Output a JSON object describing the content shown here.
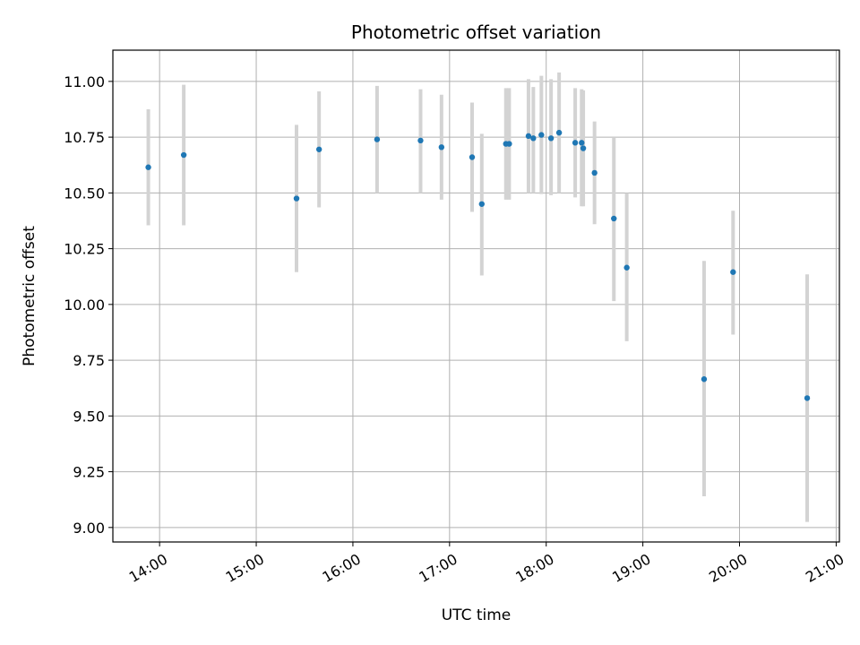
{
  "chart_data": {
    "type": "scatter",
    "title": "Photometric offset variation",
    "xlabel": "UTC time",
    "ylabel": "Photometric offset",
    "x_axis": "time",
    "xlim": [
      "13:31",
      "21:02"
    ],
    "ylim": [
      8.935,
      11.14
    ],
    "x_ticks": [
      "14:00",
      "15:00",
      "16:00",
      "17:00",
      "18:00",
      "19:00",
      "20:00",
      "21:00"
    ],
    "y_ticks": [
      "9.00",
      "9.25",
      "9.50",
      "9.75",
      "10.00",
      "10.25",
      "10.50",
      "10.75",
      "11.00"
    ],
    "grid": true,
    "colors": {
      "points": "#1f77b4",
      "errorbars": "#d3d3d3",
      "grid": "#b0b0b0"
    },
    "points": [
      {
        "t": "13:53",
        "y": 10.615,
        "lo": 10.355,
        "hi": 10.875
      },
      {
        "t": "14:15",
        "y": 10.67,
        "lo": 10.355,
        "hi": 10.985
      },
      {
        "t": "15:25",
        "y": 10.475,
        "lo": 10.145,
        "hi": 10.805
      },
      {
        "t": "15:39",
        "y": 10.695,
        "lo": 10.435,
        "hi": 10.955
      },
      {
        "t": "16:15",
        "y": 10.74,
        "lo": 10.5,
        "hi": 10.98
      },
      {
        "t": "16:42",
        "y": 10.735,
        "lo": 10.5,
        "hi": 10.965
      },
      {
        "t": "16:55",
        "y": 10.705,
        "lo": 10.47,
        "hi": 10.94
      },
      {
        "t": "17:14",
        "y": 10.66,
        "lo": 10.415,
        "hi": 10.905
      },
      {
        "t": "17:20",
        "y": 10.45,
        "lo": 10.13,
        "hi": 10.765
      },
      {
        "t": "17:35",
        "y": 10.72,
        "lo": 10.47,
        "hi": 10.97
      },
      {
        "t": "17:37",
        "y": 10.72,
        "lo": 10.47,
        "hi": 10.97
      },
      {
        "t": "17:49",
        "y": 10.755,
        "lo": 10.5,
        "hi": 11.01
      },
      {
        "t": "17:52",
        "y": 10.745,
        "lo": 10.5,
        "hi": 10.975
      },
      {
        "t": "17:57",
        "y": 10.76,
        "lo": 10.495,
        "hi": 11.025
      },
      {
        "t": "18:03",
        "y": 10.745,
        "lo": 10.49,
        "hi": 11.01
      },
      {
        "t": "18:08",
        "y": 10.77,
        "lo": 10.5,
        "hi": 11.04
      },
      {
        "t": "18:18",
        "y": 10.725,
        "lo": 10.48,
        "hi": 10.97
      },
      {
        "t": "18:22",
        "y": 10.725,
        "lo": 10.44,
        "hi": 10.965
      },
      {
        "t": "18:23",
        "y": 10.7,
        "lo": 10.44,
        "hi": 10.96
      },
      {
        "t": "18:30",
        "y": 10.59,
        "lo": 10.36,
        "hi": 10.82
      },
      {
        "t": "18:42",
        "y": 10.385,
        "lo": 10.015,
        "hi": 10.75
      },
      {
        "t": "18:50",
        "y": 10.165,
        "lo": 9.835,
        "hi": 10.5
      },
      {
        "t": "19:38",
        "y": 9.665,
        "lo": 9.14,
        "hi": 10.195
      },
      {
        "t": "19:56",
        "y": 10.145,
        "lo": 9.865,
        "hi": 10.42
      },
      {
        "t": "20:42",
        "y": 9.58,
        "lo": 9.025,
        "hi": 10.135
      }
    ]
  }
}
